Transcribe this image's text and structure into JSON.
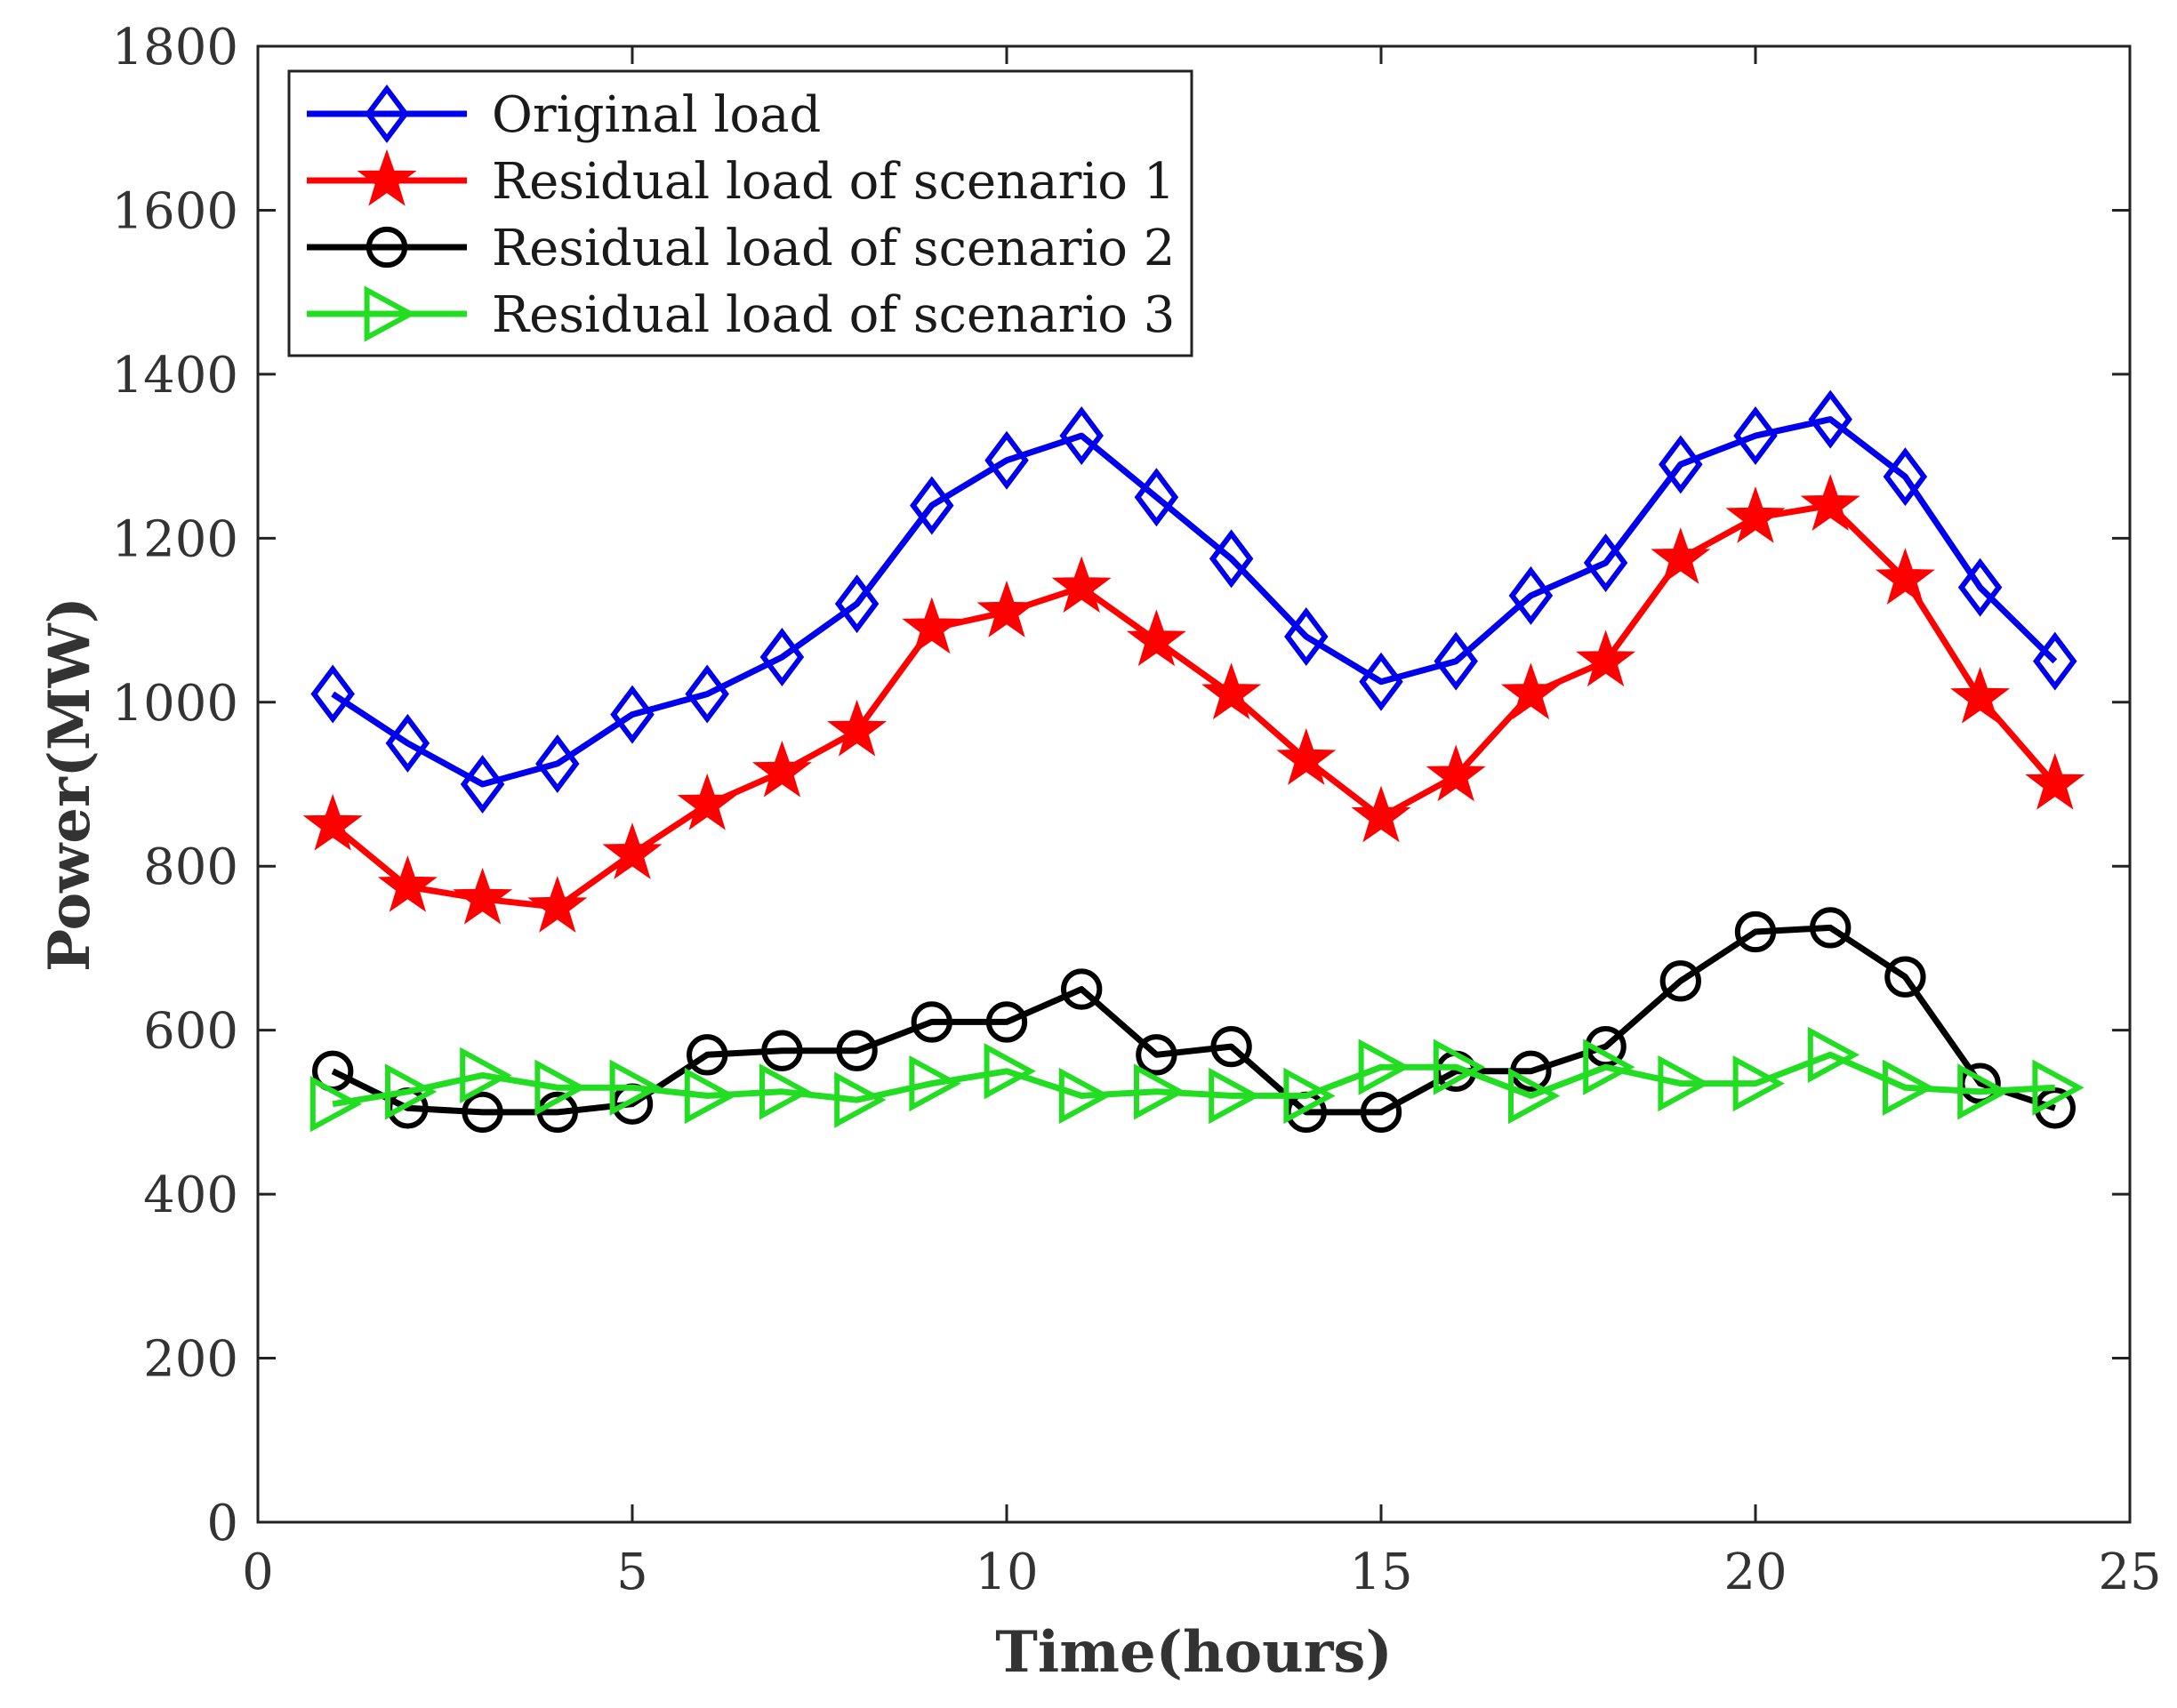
{
  "chart_data": {
    "type": "line",
    "title": "",
    "xlabel": "Time(hours)",
    "ylabel": "Power(MW)",
    "xlim": [
      0,
      25
    ],
    "ylim": [
      0,
      1800
    ],
    "xticks": [
      0,
      5,
      10,
      15,
      20,
      25
    ],
    "yticks": [
      0,
      200,
      400,
      600,
      800,
      1000,
      1200,
      1400,
      1600,
      1800
    ],
    "grid": false,
    "legend_position": "top-left",
    "x": [
      1,
      2,
      3,
      4,
      5,
      6,
      7,
      8,
      9,
      10,
      11,
      12,
      13,
      14,
      15,
      16,
      17,
      18,
      19,
      20,
      21,
      22,
      23,
      24
    ],
    "series": [
      {
        "name": "Original load",
        "color": "#0000ee",
        "marker": "diamond",
        "values": [
          1010,
          950,
          900,
          925,
          985,
          1010,
          1055,
          1120,
          1240,
          1295,
          1325,
          1250,
          1175,
          1080,
          1025,
          1050,
          1130,
          1170,
          1290,
          1325,
          1345,
          1275,
          1140,
          1050
        ]
      },
      {
        "name": "Residual load of scenario 1",
        "color": "#ff0000",
        "marker": "star",
        "values": [
          850,
          775,
          760,
          750,
          815,
          875,
          915,
          965,
          1090,
          1110,
          1140,
          1075,
          1010,
          930,
          860,
          910,
          1010,
          1050,
          1175,
          1225,
          1240,
          1150,
          1005,
          900
        ]
      },
      {
        "name": "Residual load of scenario 2",
        "color": "#000000",
        "marker": "circle",
        "values": [
          550,
          505,
          500,
          500,
          510,
          570,
          575,
          575,
          610,
          610,
          650,
          570,
          580,
          500,
          500,
          550,
          550,
          580,
          660,
          720,
          725,
          665,
          535,
          505
        ]
      },
      {
        "name": "Residual load of scenario 3",
        "color": "#22dd22",
        "marker": "triangle-right",
        "values": [
          510,
          525,
          545,
          530,
          530,
          520,
          525,
          515,
          535,
          550,
          520,
          525,
          520,
          520,
          555,
          555,
          520,
          555,
          535,
          535,
          570,
          530,
          525,
          530
        ]
      }
    ]
  }
}
